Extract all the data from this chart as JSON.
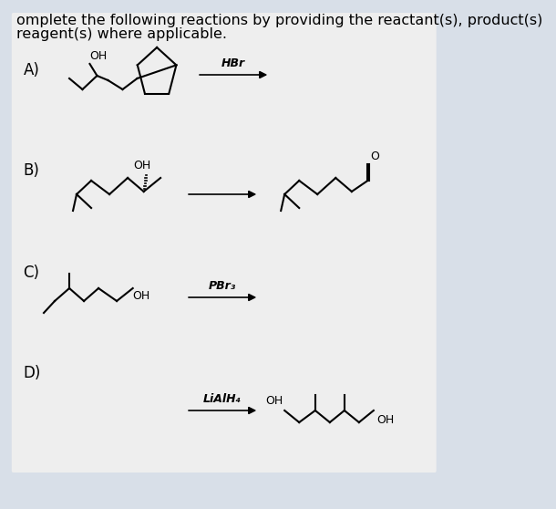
{
  "title_line1": "omplete the following reactions by providing the reactant(s), product(s)",
  "title_line2": "reagent(s) where applicable.",
  "bg_color": "#d8dfe8",
  "white_box_color": "#f0f0f0",
  "text_color": "#000000",
  "labels": [
    "A)",
    "B)",
    "C)",
    "D)"
  ],
  "reagents": [
    "HBr",
    "",
    "PBr₃",
    "LiAlH₄"
  ],
  "title_fontsize": 12,
  "label_fontsize": 12
}
